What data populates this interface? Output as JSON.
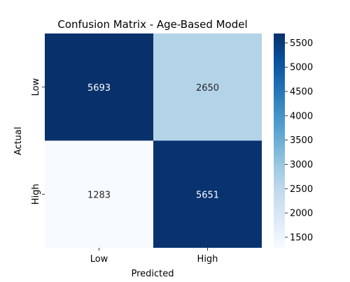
{
  "chart_data": {
    "type": "heatmap",
    "title": "Confusion Matrix - Age-Based Model",
    "xlabel": "Predicted",
    "ylabel": "Actual",
    "x_categories": [
      "Low",
      "High"
    ],
    "y_categories": [
      "Low",
      "High"
    ],
    "values": [
      [
        5693,
        2650
      ],
      [
        1283,
        5651
      ]
    ],
    "colormap": "Blues",
    "color_range": [
      1283,
      5693
    ],
    "colorbar_ticks": [
      1500,
      2000,
      2500,
      3000,
      3500,
      4000,
      4500,
      5000,
      5500
    ],
    "colorbar_tick_labels": [
      "1500",
      "2000",
      "2500",
      "3000",
      "3500",
      "4000",
      "4500",
      "5000",
      "5500"
    ],
    "cell_labels": [
      [
        "5693",
        "2650"
      ],
      [
        "1283",
        "5651"
      ]
    ],
    "dark_text_color": "#262626",
    "light_text_color": "#ffffff"
  }
}
